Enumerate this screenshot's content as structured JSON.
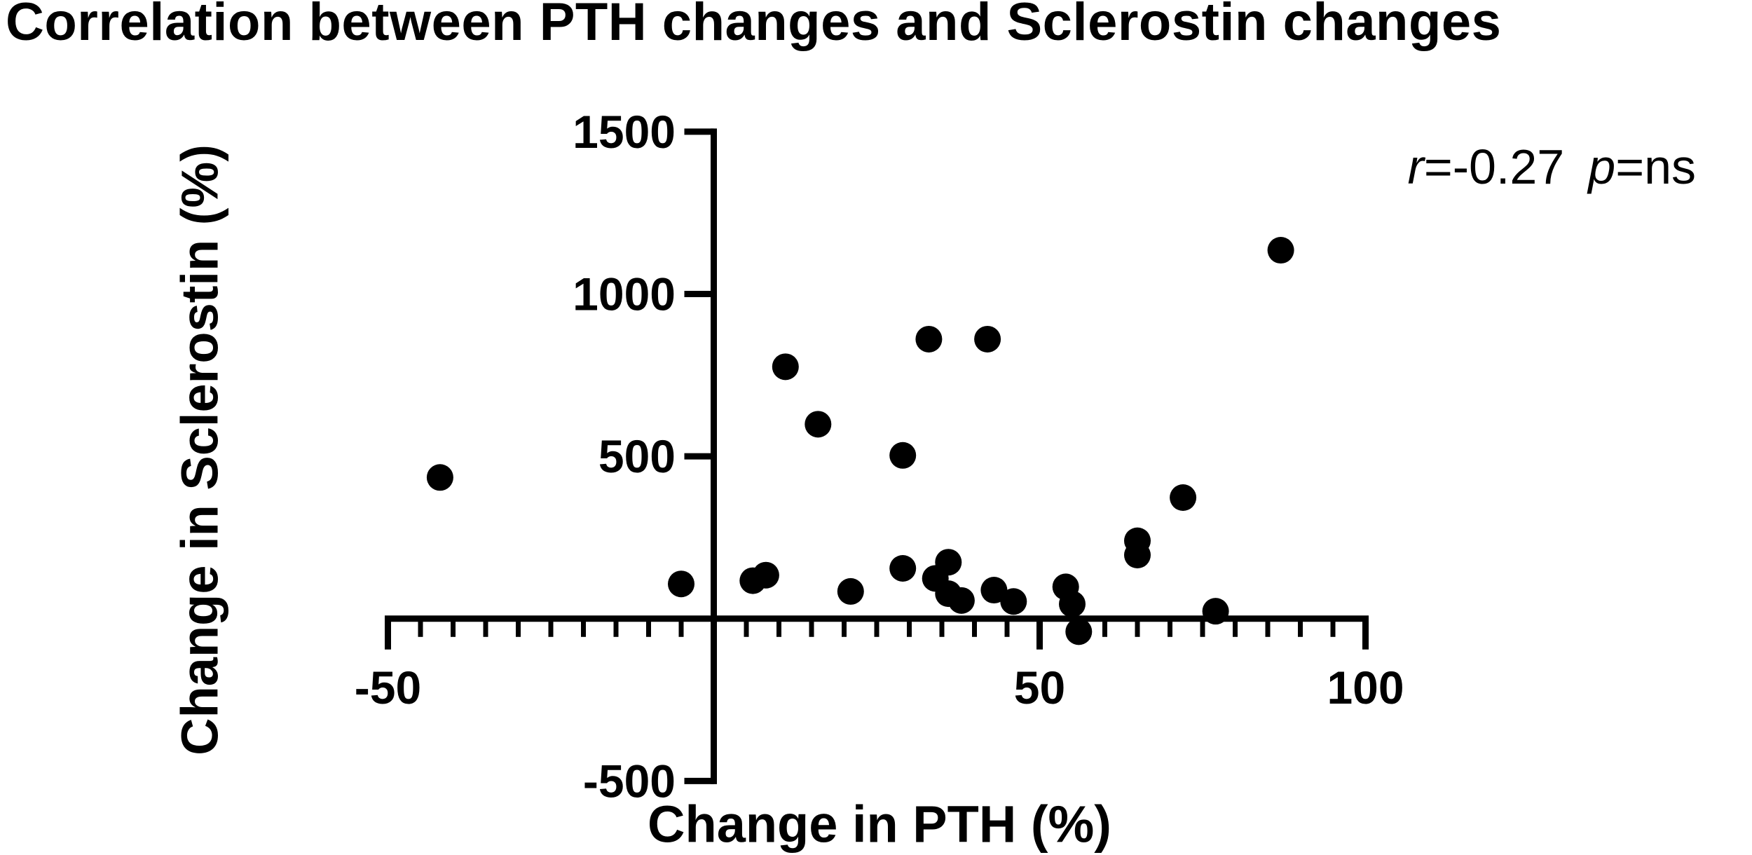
{
  "chart_data": {
    "type": "scatter",
    "title": "Correlation between PTH changes and Sclerostin changes",
    "xlabel": "Change in PTH (%)",
    "ylabel": "Change in Sclerostin (%)",
    "xlim": [
      -50,
      100
    ],
    "ylim": [
      -500,
      1500
    ],
    "x_major_ticks": [
      -50,
      50,
      100
    ],
    "x_tick_labels": [
      "-50",
      "50",
      "100"
    ],
    "x_minor_tick_step": 5,
    "y_major_ticks": [
      1500,
      1000,
      500,
      -500
    ],
    "y_tick_labels": [
      "1500",
      "1000",
      "500",
      "-500"
    ],
    "grid": false,
    "legend": false,
    "marker_color": "#000000",
    "annotation_full": "r=-0.27 p=ns",
    "pearson_r": -0.27,
    "p_value": "ns",
    "points": [
      [
        -42,
        435
      ],
      [
        -5,
        107
      ],
      [
        6,
        117
      ],
      [
        8,
        134
      ],
      [
        11,
        776
      ],
      [
        16,
        599
      ],
      [
        21,
        84
      ],
      [
        29,
        503
      ],
      [
        29,
        155
      ],
      [
        33,
        861
      ],
      [
        34,
        124
      ],
      [
        36,
        174
      ],
      [
        36,
        77
      ],
      [
        38,
        56
      ],
      [
        42,
        861
      ],
      [
        43,
        88
      ],
      [
        46,
        53
      ],
      [
        54,
        98
      ],
      [
        55,
        45
      ],
      [
        56,
        -40
      ],
      [
        65,
        240
      ],
      [
        65,
        196
      ],
      [
        72,
        373
      ],
      [
        77,
        23
      ],
      [
        87,
        1135
      ]
    ]
  },
  "annotation": {
    "r_symbol": "r",
    "r_value": "=-0.27",
    "p_symbol": "p",
    "p_value": "=ns"
  }
}
